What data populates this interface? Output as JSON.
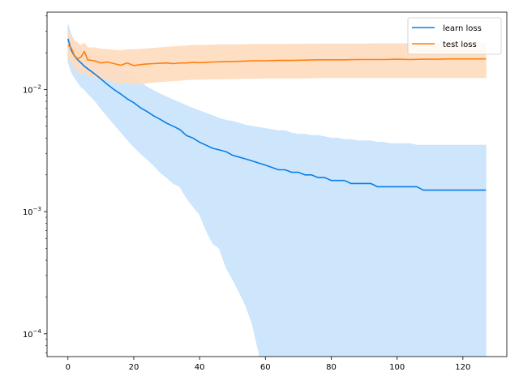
{
  "chart_data": {
    "type": "line",
    "title": "",
    "xlabel": "",
    "ylabel": "",
    "yscale": "log",
    "xlim": [
      -6.35,
      133.35
    ],
    "ylim": [
      6.5e-05,
      0.043
    ],
    "xticks": [
      {
        "value": 0,
        "label": "0"
      },
      {
        "value": 20,
        "label": "20"
      },
      {
        "value": 40,
        "label": "40"
      },
      {
        "value": 60,
        "label": "60"
      },
      {
        "value": 80,
        "label": "80"
      },
      {
        "value": 100,
        "label": "100"
      },
      {
        "value": 120,
        "label": "120"
      }
    ],
    "yticks": [
      {
        "value": 0.0001,
        "label_base": "10",
        "label_exp": "−4"
      },
      {
        "value": 0.001,
        "label_base": "10",
        "label_exp": "−3"
      },
      {
        "value": 0.01,
        "label_base": "10",
        "label_exp": "−2"
      }
    ],
    "grid": false,
    "legend": {
      "position": "top-right"
    },
    "colors": {
      "learn": "#0a7ee6",
      "learn_band": "#c9e3fc",
      "test": "#ff7f0e",
      "test_band": "#ffdcbe"
    },
    "series": [
      {
        "name": "learn loss",
        "x": [
          0,
          1,
          2,
          3,
          4,
          5,
          6,
          8,
          10,
          12,
          14,
          16,
          18,
          20,
          22,
          24,
          26,
          28,
          30,
          32,
          34,
          36,
          38,
          40,
          42,
          44,
          46,
          48,
          50,
          52,
          54,
          56,
          58,
          60,
          62,
          64,
          66,
          68,
          70,
          72,
          74,
          76,
          78,
          80,
          82,
          84,
          86,
          88,
          90,
          92,
          94,
          96,
          98,
          100,
          102,
          104,
          106,
          108,
          110,
          112,
          114,
          116,
          118,
          120,
          122,
          124,
          126,
          127
        ],
        "y": [
          0.026,
          0.021,
          0.0188,
          0.0175,
          0.0165,
          0.0155,
          0.0148,
          0.0135,
          0.0122,
          0.011,
          0.01,
          0.0092,
          0.0084,
          0.0078,
          0.0071,
          0.0066,
          0.0061,
          0.0057,
          0.0053,
          0.005,
          0.0047,
          0.0042,
          0.004,
          0.0037,
          0.0035,
          0.0033,
          0.0032,
          0.0031,
          0.0029,
          0.0028,
          0.0027,
          0.0026,
          0.0025,
          0.0024,
          0.0023,
          0.0022,
          0.0022,
          0.0021,
          0.0021,
          0.002,
          0.002,
          0.0019,
          0.0019,
          0.0018,
          0.0018,
          0.0018,
          0.0017,
          0.0017,
          0.0017,
          0.0017,
          0.0016,
          0.0016,
          0.0016,
          0.0016,
          0.0016,
          0.0016,
          0.0016,
          0.0015,
          0.0015,
          0.0015,
          0.0015,
          0.0015,
          0.0015,
          0.0015,
          0.0015,
          0.0015,
          0.0015,
          0.0015
        ],
        "band_upper": [
          0.034,
          0.028,
          0.025,
          0.023,
          0.022,
          0.021,
          0.02,
          0.019,
          0.018,
          0.0165,
          0.0155,
          0.0145,
          0.0135,
          0.0125,
          0.0115,
          0.0105,
          0.0098,
          0.0092,
          0.0087,
          0.0082,
          0.0078,
          0.0074,
          0.007,
          0.0067,
          0.0064,
          0.0061,
          0.0058,
          0.0056,
          0.0055,
          0.0053,
          0.0051,
          0.005,
          0.0049,
          0.0048,
          0.0047,
          0.0046,
          0.0046,
          0.0044,
          0.0043,
          0.0043,
          0.0042,
          0.0042,
          0.0041,
          0.004,
          0.004,
          0.0039,
          0.0039,
          0.0038,
          0.0038,
          0.0038,
          0.0037,
          0.0037,
          0.0036,
          0.0036,
          0.0036,
          0.0036,
          0.0035,
          0.0035,
          0.0035,
          0.0035,
          0.0035,
          0.0035,
          0.0035,
          0.0035,
          0.0035,
          0.0035,
          0.0035,
          0.0035
        ],
        "band_lower": [
          0.017,
          0.014,
          0.0125,
          0.0115,
          0.0105,
          0.01,
          0.0093,
          0.0082,
          0.007,
          0.006,
          0.0052,
          0.0045,
          0.0039,
          0.0034,
          0.003,
          0.0027,
          0.0024,
          0.0021,
          0.0019,
          0.0017,
          0.0016,
          0.0013,
          0.0011,
          0.00095,
          0.0007,
          0.00055,
          0.0005,
          0.00035,
          0.00028,
          0.00022,
          0.00017,
          0.00012,
          7e-05,
          3e-05,
          3e-05,
          3e-05,
          3e-05,
          3e-05,
          3e-05,
          3e-05,
          3e-05,
          3e-05,
          3e-05,
          3e-05,
          3e-05,
          3e-05,
          3e-05,
          3e-05,
          3e-05,
          3e-05,
          3e-05,
          3e-05,
          3e-05,
          3e-05,
          3e-05,
          3e-05,
          3e-05,
          3e-05,
          3e-05,
          3e-05,
          3e-05,
          3e-05,
          3e-05,
          3e-05,
          3e-05,
          3e-05,
          3e-05,
          3e-05
        ]
      },
      {
        "name": "test loss",
        "x": [
          0,
          1,
          2,
          3,
          4,
          5,
          6,
          8,
          10,
          12,
          14,
          16,
          18,
          20,
          22,
          24,
          26,
          28,
          30,
          32,
          34,
          36,
          38,
          40,
          44,
          48,
          52,
          56,
          60,
          64,
          68,
          72,
          76,
          80,
          84,
          88,
          92,
          96,
          100,
          104,
          108,
          112,
          116,
          120,
          124,
          127
        ],
        "y": [
          0.023,
          0.022,
          0.019,
          0.0178,
          0.0185,
          0.0205,
          0.0175,
          0.0172,
          0.0165,
          0.0168,
          0.0163,
          0.0158,
          0.0165,
          0.0157,
          0.016,
          0.0162,
          0.0163,
          0.0164,
          0.0165,
          0.0163,
          0.0165,
          0.0165,
          0.0167,
          0.0166,
          0.0168,
          0.0169,
          0.017,
          0.0172,
          0.0172,
          0.0173,
          0.0173,
          0.0174,
          0.0175,
          0.0175,
          0.0175,
          0.0176,
          0.0176,
          0.0176,
          0.0177,
          0.0176,
          0.0177,
          0.0177,
          0.0178,
          0.0178,
          0.0178,
          0.0178
        ],
        "band_upper": [
          0.029,
          0.028,
          0.025,
          0.024,
          0.023,
          0.024,
          0.022,
          0.022,
          0.0215,
          0.0212,
          0.021,
          0.0208,
          0.0212,
          0.0212,
          0.0214,
          0.0216,
          0.0218,
          0.022,
          0.0222,
          0.0224,
          0.0226,
          0.0228,
          0.023,
          0.023,
          0.0232,
          0.0233,
          0.0233,
          0.0234,
          0.0235,
          0.0234,
          0.0235,
          0.0235,
          0.0236,
          0.0236,
          0.0236,
          0.0236,
          0.0237,
          0.0237,
          0.0237,
          0.0238,
          0.0238,
          0.0238,
          0.0238,
          0.0238,
          0.0238,
          0.0238
        ],
        "band_lower": [
          0.018,
          0.017,
          0.015,
          0.014,
          0.0135,
          0.014,
          0.013,
          0.0125,
          0.012,
          0.012,
          0.0115,
          0.0112,
          0.0114,
          0.011,
          0.0112,
          0.0113,
          0.0115,
          0.0116,
          0.0117,
          0.0118,
          0.0119,
          0.012,
          0.0121,
          0.0121,
          0.0122,
          0.0122,
          0.0123,
          0.0123,
          0.0124,
          0.0124,
          0.0124,
          0.0124,
          0.0125,
          0.0125,
          0.0125,
          0.0125,
          0.0125,
          0.0125,
          0.0125,
          0.0125,
          0.0125,
          0.0125,
          0.0125,
          0.0125,
          0.0125,
          0.0125
        ]
      }
    ]
  }
}
